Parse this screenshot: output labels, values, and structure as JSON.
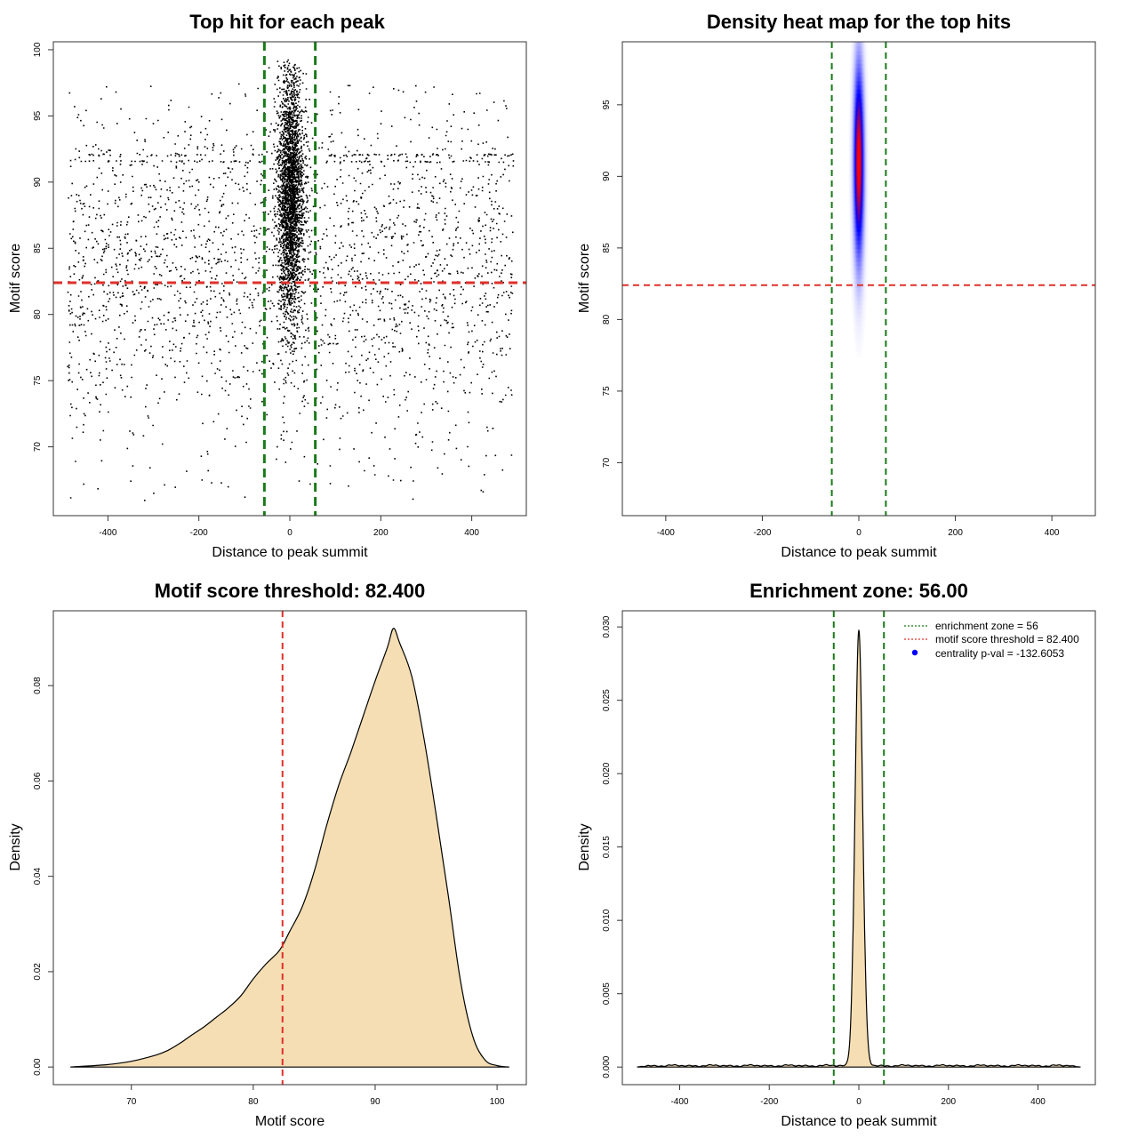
{
  "colors": {
    "threshold_line": "#e0302a",
    "zone_line": "#1a7a1a",
    "density_fill": "#f5deb3",
    "points": "#000000",
    "heat_low": "#ffffff",
    "heat_mid": "#0000ff",
    "heat_high": "#ff0000",
    "legend_point": "#0000ff"
  },
  "chart_data": [
    {
      "id": "scatter",
      "type": "scatter",
      "title": "Top hit for each peak",
      "xlabel": "Distance to peak summit",
      "ylabel": "Motif score",
      "xlim": [
        -520,
        520
      ],
      "ylim": [
        64.8,
        100.6
      ],
      "xticks": [
        -400,
        -200,
        0,
        200,
        400
      ],
      "yticks": [
        70,
        75,
        80,
        85,
        90,
        95,
        100
      ],
      "zone_lines": [
        -56,
        56
      ],
      "threshold": 82.4,
      "background": {
        "count": 2400,
        "x_range": [
          -490,
          490
        ],
        "y_mean": 83,
        "y_sd": 6.5
      },
      "central_cluster": {
        "count": 6000,
        "x_sd": 14,
        "y_mean": 89,
        "y_sd": 4.6
      },
      "row_artifacts": [
        91.6,
        92.1
      ]
    },
    {
      "id": "heatmap",
      "type": "heatmap",
      "title": "Density heat map for the top hits",
      "xlabel": "Distance to peak summit",
      "ylabel": "Motif score",
      "xlim": [
        -490,
        490
      ],
      "ylim": [
        66.3,
        99.4
      ],
      "xticks": [
        -400,
        -200,
        0,
        200,
        400
      ],
      "yticks": [
        70,
        75,
        80,
        85,
        90,
        95
      ],
      "zone_lines": [
        -56,
        56
      ],
      "threshold": 82.4,
      "peak": {
        "x": 0,
        "y": 91,
        "x_sd": 7,
        "y_sd": 4.5
      }
    },
    {
      "id": "score_density",
      "type": "area",
      "title": "Motif score threshold: 82.400",
      "xlabel": "Motif score",
      "ylabel": "Density",
      "xlim": [
        63.6,
        102.4
      ],
      "ylim": [
        -0.0037,
        0.0957
      ],
      "xticks": [
        70,
        80,
        90,
        100
      ],
      "yticks": [
        0.0,
        0.02,
        0.04,
        0.06,
        0.08
      ],
      "ytick_labels": [
        "0.00",
        "0.02",
        "0.04",
        "0.06",
        "0.08"
      ],
      "threshold": 82.4,
      "x": [
        65,
        68,
        70,
        72,
        73,
        74,
        75,
        76,
        77,
        78,
        79,
        80,
        81,
        82,
        82.4,
        83,
        84,
        85,
        86,
        87,
        88,
        89,
        90,
        91,
        91.5,
        92,
        93,
        94,
        95,
        96,
        97,
        98,
        99,
        100,
        101
      ],
      "y": [
        0,
        0.0005,
        0.0012,
        0.0025,
        0.0035,
        0.005,
        0.0068,
        0.0085,
        0.0105,
        0.0125,
        0.015,
        0.0185,
        0.0215,
        0.024,
        0.0255,
        0.0285,
        0.0335,
        0.041,
        0.0505,
        0.059,
        0.066,
        0.0735,
        0.081,
        0.088,
        0.092,
        0.089,
        0.082,
        0.069,
        0.053,
        0.036,
        0.018,
        0.0065,
        0.0015,
        0.0003,
        0
      ]
    },
    {
      "id": "position_density",
      "type": "area",
      "title": "Enrichment zone: 56.00",
      "xlabel": "Distance to peak summit",
      "ylabel": "Density",
      "xlim": [
        -528,
        528
      ],
      "ylim": [
        -0.0012,
        0.0311
      ],
      "xticks": [
        -400,
        -200,
        0,
        200,
        400
      ],
      "yticks": [
        0.0,
        0.005,
        0.01,
        0.015,
        0.02,
        0.025,
        0.03
      ],
      "ytick_labels": [
        "0.000",
        "0.005",
        "0.010",
        "0.015",
        "0.020",
        "0.025",
        "0.030"
      ],
      "zone_lines": [
        -56,
        56
      ],
      "peak": {
        "x": 0,
        "sd": 8.5,
        "height": 0.0297,
        "baseline": 0.00012
      },
      "x_range": [
        -495,
        495
      ],
      "legend": [
        {
          "kind": "dotted-line",
          "color_key": "zone_line",
          "label": "enrichment zone = 56"
        },
        {
          "kind": "dotted-line",
          "color_key": "threshold_line",
          "label": "motif score threshold = 82.400"
        },
        {
          "kind": "point",
          "color_key": "legend_point",
          "label": "centrality p-val = -132.6053"
        }
      ]
    }
  ]
}
